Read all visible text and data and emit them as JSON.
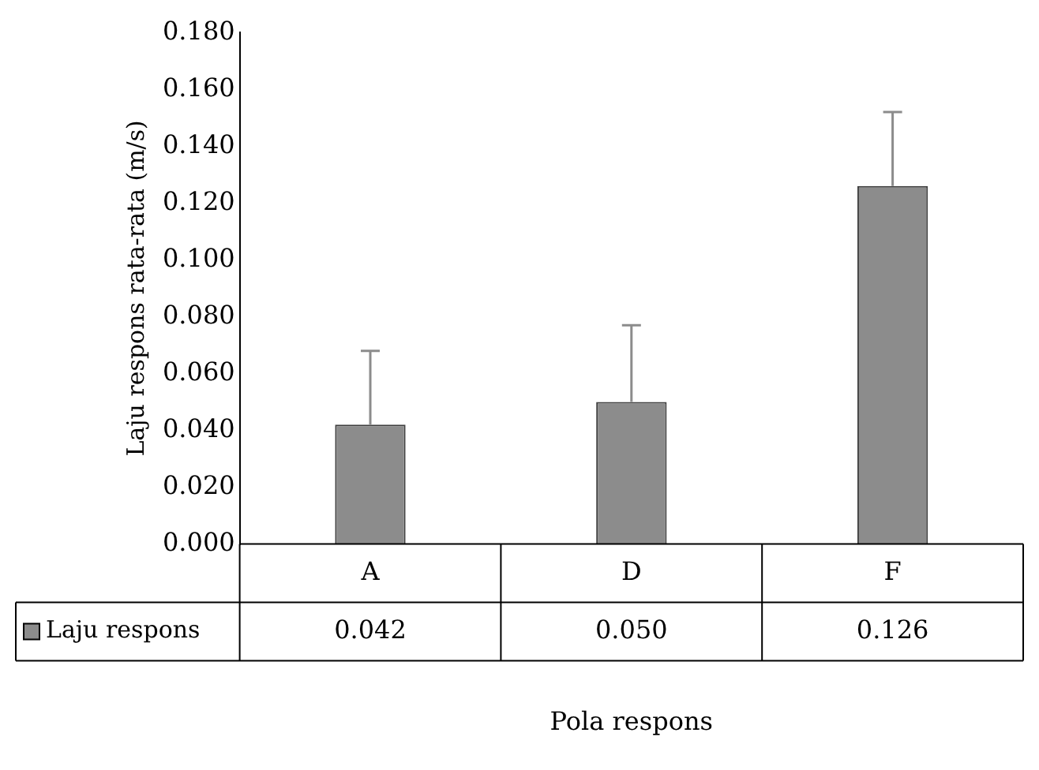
{
  "chart_data": {
    "type": "bar",
    "xlabel": "Pola respons",
    "ylabel": "Laju respons rata-rata (m/s)",
    "categories": [
      "A",
      "D",
      "F"
    ],
    "series": [
      {
        "name": "Laju respons",
        "color": "#8c8c8c",
        "values": [
          0.042,
          0.05,
          0.126
        ],
        "errors": [
          [
            0.042,
            0.068
          ],
          [
            0.05,
            0.077
          ],
          [
            0.126,
            0.152
          ]
        ],
        "value_labels": [
          "0.042",
          "0.050",
          "0.126"
        ]
      }
    ],
    "ylim": [
      0,
      0.18
    ],
    "yticks": [
      {
        "value": 0,
        "label": "0.000"
      },
      {
        "value": 0.02,
        "label": "0.020"
      },
      {
        "value": 0.04,
        "label": "0.040"
      },
      {
        "value": 0.06,
        "label": "0.060"
      },
      {
        "value": 0.08,
        "label": "0.080"
      },
      {
        "value": 0.1,
        "label": "0.100"
      },
      {
        "value": 0.12,
        "label": "0.120"
      },
      {
        "value": 0.14,
        "label": "0.140"
      },
      {
        "value": 0.16,
        "label": "0.160"
      },
      {
        "value": 0.18,
        "label": "0.180"
      }
    ],
    "grid": false,
    "legend": "bottom"
  }
}
